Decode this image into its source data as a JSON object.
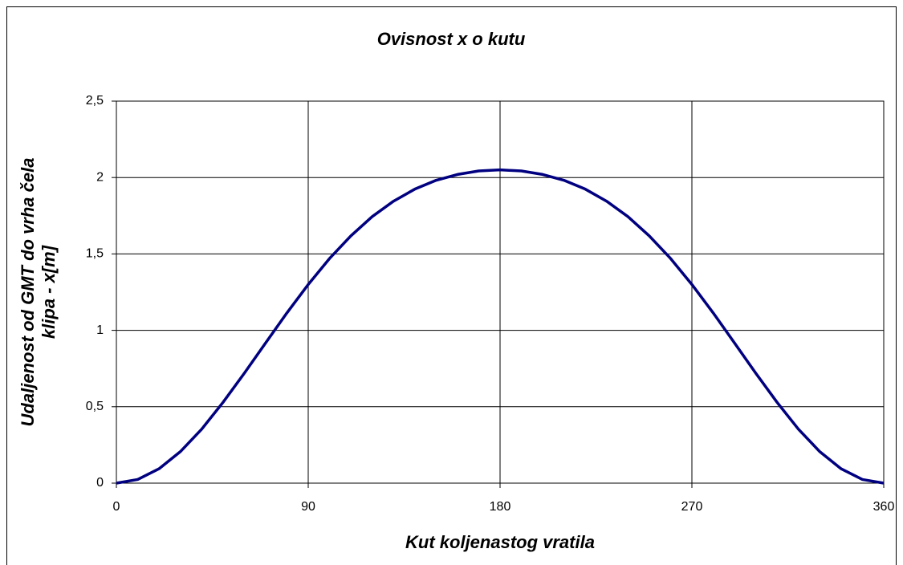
{
  "chart_data": {
    "type": "line",
    "title": "Ovisnost x o kutu",
    "x_label": "Kut koljenastog vratila",
    "y_label": [
      "Udaljenost od GMT do vrha čela",
      "klipa - x[m]"
    ],
    "x": [
      0,
      10,
      20,
      30,
      40,
      50,
      60,
      70,
      80,
      90,
      100,
      110,
      120,
      130,
      140,
      150,
      160,
      170,
      180,
      190,
      200,
      210,
      220,
      230,
      240,
      250,
      260,
      270,
      280,
      290,
      300,
      310,
      320,
      330,
      340,
      350,
      360
    ],
    "series": [
      {
        "color": "#000080",
        "values": [
          0,
          0.024,
          0.094,
          0.206,
          0.353,
          0.528,
          0.719,
          0.917,
          1.114,
          1.3,
          1.47,
          1.618,
          1.744,
          1.845,
          1.924,
          1.982,
          2.02,
          2.043,
          2.05,
          2.043,
          2.02,
          1.982,
          1.924,
          1.845,
          1.744,
          1.618,
          1.47,
          1.3,
          1.114,
          0.917,
          0.719,
          0.528,
          0.353,
          0.206,
          0.094,
          0.024,
          0
        ]
      }
    ],
    "xlim": [
      0,
      360
    ],
    "xticks": [
      0,
      90,
      180,
      270,
      360
    ],
    "ylim": [
      0,
      2.5
    ],
    "yticks": [
      0,
      {
        "value": 0.5,
        "label": "0,5"
      },
      1,
      {
        "value": 1.5,
        "label": "1,5"
      },
      2,
      {
        "value": 2.5,
        "label": "2,5"
      }
    ],
    "grid": true
  }
}
